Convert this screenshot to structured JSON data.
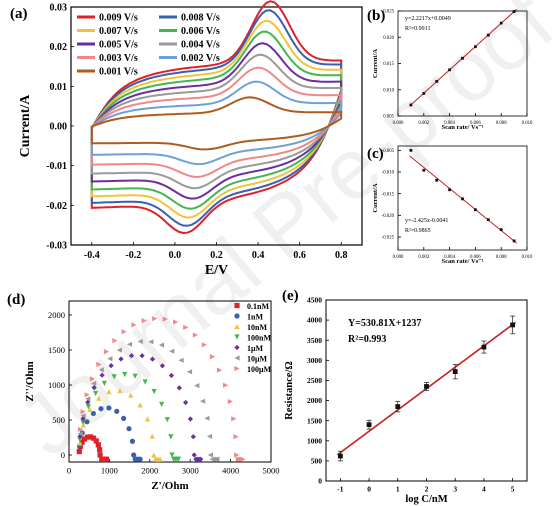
{
  "watermark": "Journal Pre-proof",
  "chart_data": [
    {
      "panel": "(a)",
      "type": "line",
      "xlabel": "E/V",
      "ylabel": "Current/A",
      "xlim": [
        -0.5,
        0.9
      ],
      "ylim": [
        -0.03,
        0.03
      ],
      "xticks": [
        "-0.4",
        "-0.2",
        "0.0",
        "0.2",
        "0.4",
        "0.6",
        "0.8"
      ],
      "yticks": [
        "0.03",
        "0.02",
        "0.01",
        "0.00",
        "-0.01",
        "-0.02",
        "-0.03"
      ],
      "legend_position": "top-left",
      "series": [
        {
          "name": "0.009 V/s",
          "color": "#e0202a",
          "upper_edge": 0.0165,
          "oxidation_peak": {
            "x": 0.46,
            "y": 0.0245
          },
          "reduction_peak": {
            "x": 0.05,
            "y": -0.0175
          }
        },
        {
          "name": "0.008 V/s",
          "color": "#3a5fae",
          "upper_edge": 0.0155,
          "oxidation_peak": {
            "x": 0.45,
            "y": 0.0227
          },
          "reduction_peak": {
            "x": 0.06,
            "y": -0.0163
          }
        },
        {
          "name": "0.007 V/s",
          "color": "#f2c23a",
          "upper_edge": 0.0142,
          "oxidation_peak": {
            "x": 0.44,
            "y": 0.0206
          },
          "reduction_peak": {
            "x": 0.07,
            "y": -0.015
          }
        },
        {
          "name": "0.006 V/s",
          "color": "#46b64e",
          "upper_edge": 0.0128,
          "oxidation_peak": {
            "x": 0.43,
            "y": 0.0185
          },
          "reduction_peak": {
            "x": 0.08,
            "y": -0.0136
          }
        },
        {
          "name": "0.005 V/s",
          "color": "#6a2ea0",
          "upper_edge": 0.0112,
          "oxidation_peak": {
            "x": 0.42,
            "y": 0.0162
          },
          "reduction_peak": {
            "x": 0.09,
            "y": -0.012
          }
        },
        {
          "name": "0.004 V/s",
          "color": "#9a9a9a",
          "upper_edge": 0.0096,
          "oxidation_peak": {
            "x": 0.41,
            "y": 0.014
          },
          "reduction_peak": {
            "x": 0.1,
            "y": -0.0103
          }
        },
        {
          "name": "0.003 V/s",
          "color": "#f08888",
          "upper_edge": 0.0078,
          "oxidation_peak": {
            "x": 0.4,
            "y": 0.0115
          },
          "reduction_peak": {
            "x": 0.11,
            "y": -0.0085
          }
        },
        {
          "name": "0.002 V/s",
          "color": "#6ea0d8",
          "upper_edge": 0.0058,
          "oxidation_peak": {
            "x": 0.39,
            "y": 0.0088
          },
          "reduction_peak": {
            "x": 0.12,
            "y": -0.0064
          }
        },
        {
          "name": "0.001 V/s",
          "color": "#b05a1e",
          "upper_edge": 0.0035,
          "oxidation_peak": {
            "x": 0.36,
            "y": 0.0058
          },
          "reduction_peak": {
            "x": 0.15,
            "y": -0.004
          }
        }
      ]
    },
    {
      "panel": "(b)",
      "type": "scatter",
      "xlabel": "Scan rate/ Vs⁻¹",
      "ylabel": "Current/A",
      "xlim": [
        0,
        0.01
      ],
      "ylim": [
        0.005,
        0.025
      ],
      "xticks": [
        "0.000",
        "0.002",
        "0.004",
        "0.006",
        "0.008",
        "0.010"
      ],
      "yticks": [
        "0.025",
        "0.020",
        "0.015",
        "0.010",
        "0.005"
      ],
      "annotation": [
        "y=2.2217x+0.0049",
        "R²=0.9911"
      ],
      "x": [
        0.001,
        0.002,
        0.003,
        0.004,
        0.005,
        0.006,
        0.007,
        0.008,
        0.009
      ],
      "y": [
        0.0071,
        0.0093,
        0.0116,
        0.0138,
        0.016,
        0.0182,
        0.0204,
        0.0227,
        0.0249
      ],
      "fit": {
        "slope": 2.2217,
        "intercept": 0.0049
      }
    },
    {
      "panel": "(c)",
      "type": "scatter",
      "xlabel": "Scan rate/ Vs⁻¹",
      "ylabel": "Current/A",
      "xlim": [
        0,
        0.01
      ],
      "ylim": [
        -0.028,
        -0.004
      ],
      "xticks": [
        "0.000",
        "0.002",
        "0.004",
        "0.006",
        "0.008",
        "0.010"
      ],
      "yticks": [
        "-0.005",
        "-0.010",
        "-0.015",
        "-0.020",
        "-0.025"
      ],
      "annotation": [
        "y=-2.425x-0.0041",
        "R²=0.9865"
      ],
      "x": [
        0.001,
        0.002,
        0.003,
        0.004,
        0.005,
        0.006,
        0.007,
        0.008,
        0.009
      ],
      "y": [
        -0.005,
        -0.0096,
        -0.0119,
        -0.0141,
        -0.0162,
        -0.0187,
        -0.021,
        -0.0233,
        -0.0259
      ],
      "fit": {
        "slope": -2.425,
        "intercept": -0.0041
      }
    },
    {
      "panel": "(d)",
      "type": "scatter",
      "xlabel": "Z'/Ohm",
      "ylabel": "Z''/Ohm",
      "xlim": [
        0,
        5000
      ],
      "ylim": [
        -100,
        2200
      ],
      "xticks": [
        "0",
        "1000",
        "2000",
        "3000",
        "4000",
        "5000"
      ],
      "yticks": [
        "0",
        "500",
        "1000",
        "1500",
        "2000"
      ],
      "legend_position": "top-right",
      "series": [
        {
          "name": "0.1nM",
          "color": "#e0202a",
          "marker": "square",
          "rs": 250,
          "rct": 520
        },
        {
          "name": "1nM",
          "color": "#3a5fae",
          "marker": "circle",
          "rs": 250,
          "rct": 1350
        },
        {
          "name": "10nM",
          "color": "#f2c23a",
          "marker": "triangle-up",
          "rs": 250,
          "rct": 1850
        },
        {
          "name": "100nM",
          "color": "#46b64e",
          "marker": "triangle-down",
          "rs": 250,
          "rct": 2300
        },
        {
          "name": "1μM",
          "color": "#6a2ea0",
          "marker": "diamond",
          "rs": 250,
          "rct": 2850
        },
        {
          "name": "10μM",
          "color": "#9a9a9a",
          "marker": "triangle-left",
          "rs": 250,
          "rct": 3250
        },
        {
          "name": "100μM",
          "color": "#f08888",
          "marker": "triangle-right",
          "rs": 250,
          "rct": 3900
        }
      ]
    },
    {
      "panel": "(e)",
      "type": "scatter",
      "xlabel": "log C/nM",
      "ylabel": "Resistance/Ω",
      "xlim": [
        -1.5,
        5.5
      ],
      "ylim": [
        0,
        4500
      ],
      "xticks": [
        "-1",
        "0",
        "1",
        "2",
        "3",
        "4",
        "5"
      ],
      "yticks": [
        "0",
        "500",
        "1000",
        "1500",
        "2000",
        "2500",
        "3000",
        "3500",
        "4000",
        "4500"
      ],
      "annotation": [
        "Y=530.81X+1237",
        "R²=0.993"
      ],
      "x": [
        -1,
        0,
        1,
        2,
        3,
        4,
        5
      ],
      "y": [
        620,
        1400,
        1850,
        2350,
        2720,
        3330,
        3880
      ],
      "error": [
        120,
        110,
        130,
        100,
        180,
        150,
        220
      ],
      "fit": {
        "slope": 530.81,
        "intercept": 1237
      },
      "color": "#c81e1e"
    }
  ]
}
